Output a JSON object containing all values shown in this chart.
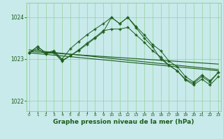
{
  "bg_color": "#c8eaea",
  "grid_color": "#88cc88",
  "line_color": "#1a5c1a",
  "xlabel": "Graphe pression niveau de la mer (hPa)",
  "xlim": [
    -0.3,
    23.3
  ],
  "ylim": [
    1021.75,
    1024.35
  ],
  "yticks": [
    1022,
    1023,
    1024
  ],
  "xticks": [
    0,
    1,
    2,
    3,
    4,
    5,
    6,
    7,
    8,
    9,
    10,
    11,
    12,
    13,
    14,
    15,
    16,
    17,
    18,
    19,
    20,
    21,
    22,
    23
  ],
  "series1_x": [
    0,
    1,
    2,
    3,
    4,
    5,
    6,
    7,
    8,
    9,
    10,
    11,
    12,
    13,
    14,
    15,
    16,
    17,
    18,
    19,
    20,
    21,
    22,
    23
  ],
  "series1_y": [
    1023.15,
    1023.3,
    1023.15,
    1023.2,
    1023.0,
    1023.25,
    1023.42,
    1023.58,
    1023.72,
    1023.85,
    1024.0,
    1023.85,
    1024.0,
    1023.78,
    1023.58,
    1023.35,
    1023.2,
    1022.95,
    1022.82,
    1022.58,
    1022.45,
    1022.62,
    1022.48,
    1022.68
  ],
  "series2_x": [
    0,
    1,
    2,
    3,
    4,
    5,
    6,
    7,
    8,
    9,
    10,
    11,
    12,
    13,
    14,
    15,
    16,
    17,
    18,
    19,
    20,
    21,
    22,
    23
  ],
  "series2_y": [
    1023.15,
    1023.3,
    1023.15,
    1023.15,
    1022.95,
    1023.08,
    1023.22,
    1023.38,
    1023.52,
    1023.68,
    1023.72,
    1023.72,
    1023.76,
    1023.58,
    1023.4,
    1023.2,
    1023.05,
    1022.85,
    1022.72,
    1022.5,
    1022.38,
    1022.52,
    1022.38,
    1022.58
  ],
  "series3_x": [
    0,
    1,
    2,
    3,
    4,
    5,
    6,
    7,
    8,
    9,
    10,
    11,
    12,
    13,
    14,
    15,
    16,
    17,
    18,
    19,
    20,
    21,
    22,
    23
  ],
  "series3_y": [
    1023.15,
    1023.25,
    1023.12,
    1023.18,
    1022.97,
    1023.08,
    1023.2,
    1023.35,
    1023.5,
    1023.65,
    1024.0,
    1023.85,
    1024.0,
    1023.75,
    1023.5,
    1023.3,
    1023.0,
    1022.85,
    1022.72,
    1022.52,
    1022.42,
    1022.58,
    1022.45,
    1022.68
  ],
  "trend1_x": [
    0,
    23
  ],
  "trend1_y": [
    1023.18,
    1022.88
  ],
  "trend2_x": [
    0,
    23
  ],
  "trend2_y": [
    1023.22,
    1022.75
  ],
  "trend3_x": [
    0,
    23
  ],
  "trend3_y": [
    1023.15,
    1022.72
  ]
}
